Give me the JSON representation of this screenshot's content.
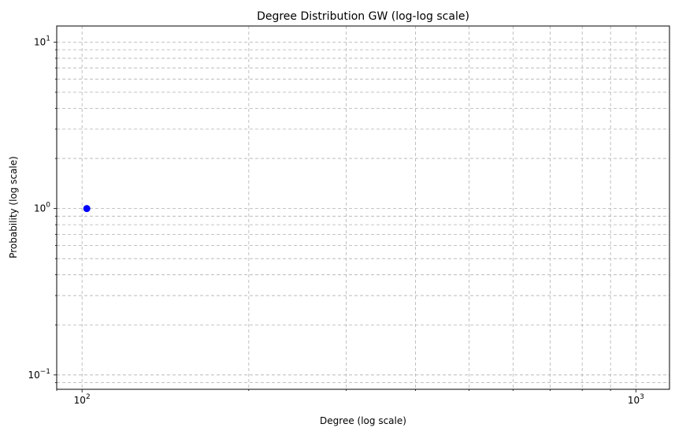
{
  "chart_data": {
    "type": "scatter",
    "title": "Degree Distribution GW (log-log scale)",
    "xlabel": "Degree (log scale)",
    "ylabel": "Probability (log scale)",
    "xscale": "log",
    "yscale": "log",
    "xlim": [
      90,
      1150
    ],
    "ylim": [
      0.082,
      12.5
    ],
    "grid": true,
    "x_major_ticks": [
      {
        "value": 100,
        "base": "10",
        "exp": "2"
      },
      {
        "value": 1000,
        "base": "10",
        "exp": "3"
      }
    ],
    "y_major_ticks": [
      {
        "value": 0.1,
        "base": "10",
        "exp": "−1"
      },
      {
        "value": 1,
        "base": "10",
        "exp": "0"
      },
      {
        "value": 10,
        "base": "10",
        "exp": "1"
      }
    ],
    "x_minor_ticks": [
      90,
      200,
      300,
      400,
      500,
      600,
      700,
      800,
      900
    ],
    "y_minor_ticks": [
      0.09,
      0.2,
      0.3,
      0.4,
      0.5,
      0.6,
      0.7,
      0.8,
      0.9,
      2,
      3,
      4,
      5,
      6,
      7,
      8,
      9
    ],
    "points": [
      {
        "x": 102,
        "y": 1
      }
    ],
    "point_color": "#0000ff"
  }
}
